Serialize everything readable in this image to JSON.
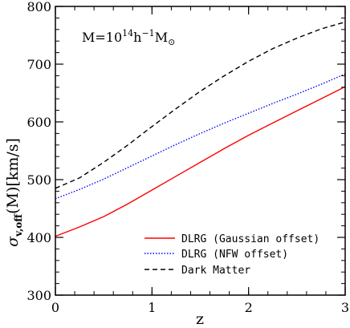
{
  "chart_data": {
    "type": "line",
    "xlabel": "z",
    "ylabel_main": "σ",
    "ylabel_sub": "v,off",
    "ylabel_rest": "(M)[km/s]",
    "xlim": [
      0,
      3
    ],
    "ylim": [
      300,
      800
    ],
    "x_ticks": [
      0,
      1,
      2,
      3
    ],
    "y_ticks": [
      300,
      400,
      500,
      600,
      700,
      800
    ],
    "x_tick_labels": [
      "0",
      "1",
      "2",
      "3"
    ],
    "y_tick_labels": [
      "300",
      "400",
      "500",
      "600",
      "700",
      "800"
    ],
    "grid": false,
    "legend_position": "bottom-right",
    "annotation": {
      "prefix": "M=10",
      "exp1": "14",
      "mid": "h",
      "exp2": "−1",
      "suffix": "M",
      "sub": "⊙"
    },
    "series": [
      {
        "name": "DLRG (Gaussian offset)",
        "color": "#ff0000",
        "dash": "solid",
        "x": [
          0,
          0.25,
          0.5,
          0.75,
          1.0,
          1.25,
          1.5,
          1.75,
          2.0,
          2.25,
          2.5,
          2.75,
          3.0
        ],
        "y": [
          402,
          418,
          436,
          458,
          482,
          506,
          530,
          554,
          577,
          598,
          619,
          640,
          661
        ]
      },
      {
        "name": "DLRG (NFW offset)",
        "color": "#0000ff",
        "dash": "dotted",
        "x": [
          0,
          0.25,
          0.5,
          0.75,
          1.0,
          1.25,
          1.5,
          1.75,
          2.0,
          2.25,
          2.5,
          2.75,
          3.0
        ],
        "y": [
          467,
          483,
          501,
          521,
          541,
          561,
          580,
          598,
          615,
          632,
          648,
          665,
          683
        ]
      },
      {
        "name": "Dark Matter",
        "color": "#000000",
        "dash": "dashed",
        "x": [
          0,
          0.25,
          0.5,
          0.75,
          1.0,
          1.25,
          1.5,
          1.75,
          2.0,
          2.25,
          2.5,
          2.75,
          3.0
        ],
        "y": [
          485,
          503,
          530,
          560,
          592,
          623,
          653,
          680,
          705,
          727,
          745,
          761,
          773
        ]
      }
    ]
  }
}
